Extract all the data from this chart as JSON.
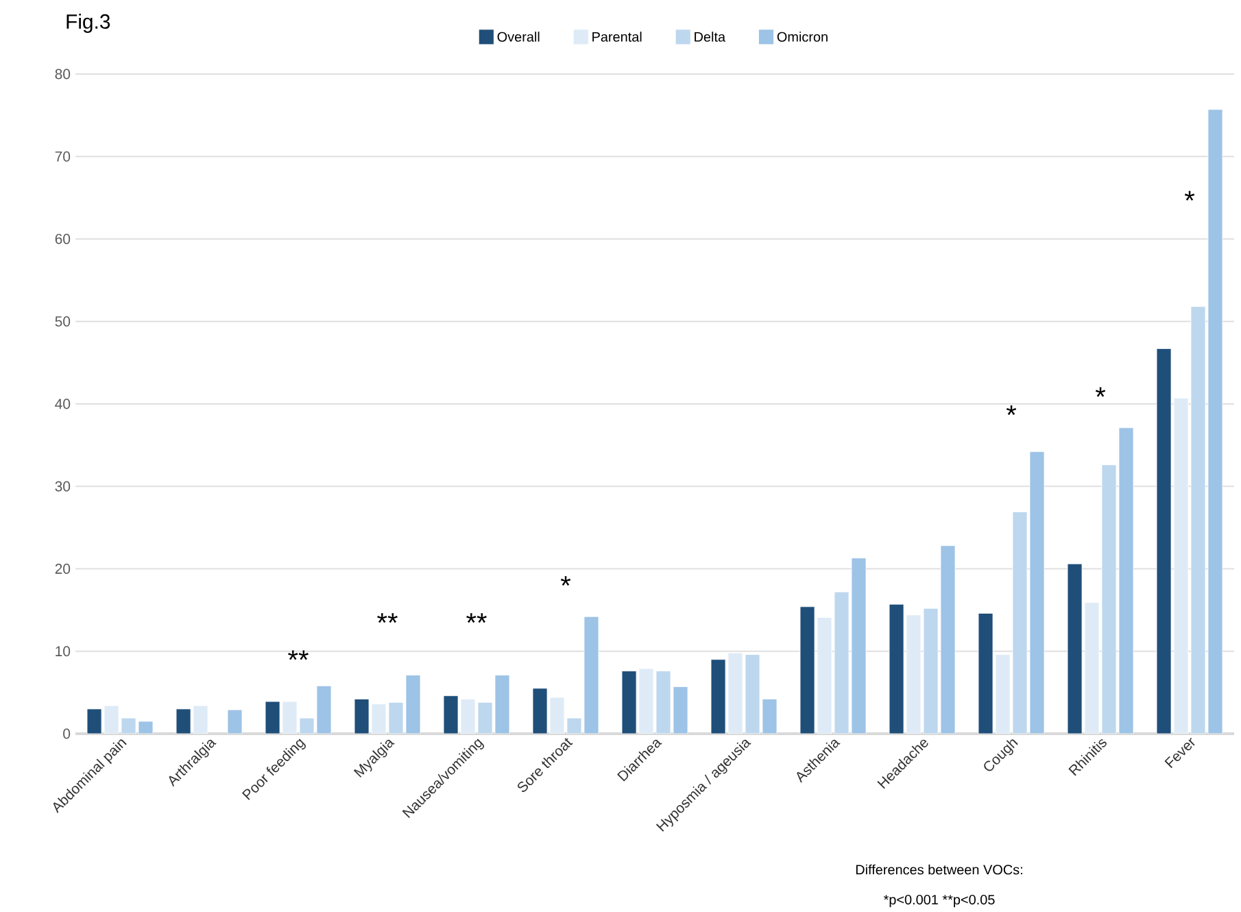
{
  "chart_data": {
    "type": "bar",
    "title": "Fig.3",
    "categories": [
      "Abdominal pain",
      "Arthralgia",
      "Poor feeding",
      "Myalgia",
      "Nausea/vomiting",
      "Sore throat",
      "Diarrhea",
      "Hyposmia / ageusia",
      "Asthenia",
      "Headache",
      "Cough",
      "Rhinitis",
      "Fever"
    ],
    "series": [
      {
        "name": "Overall",
        "color": "#1f4e79",
        "values": [
          3.0,
          3.0,
          3.9,
          4.2,
          4.6,
          5.5,
          7.6,
          9.0,
          15.4,
          15.7,
          14.6,
          20.6,
          46.7
        ]
      },
      {
        "name": "Parental",
        "color": "#deebf7",
        "values": [
          3.4,
          3.4,
          3.9,
          3.6,
          4.2,
          4.4,
          7.9,
          9.8,
          14.1,
          14.4,
          9.6,
          15.9,
          40.7
        ]
      },
      {
        "name": "Delta",
        "color": "#bdd7ee",
        "values": [
          1.9,
          null,
          1.9,
          3.8,
          3.8,
          1.9,
          7.6,
          9.6,
          17.2,
          15.2,
          26.9,
          32.6,
          51.8
        ]
      },
      {
        "name": "Omicron",
        "color": "#9dc3e6",
        "values": [
          1.5,
          2.9,
          5.8,
          7.1,
          7.1,
          14.2,
          5.7,
          4.2,
          21.3,
          22.8,
          34.2,
          37.1,
          75.7
        ]
      }
    ],
    "ylim": [
      0,
      80
    ],
    "yticks": [
      0,
      10,
      20,
      30,
      40,
      50,
      60,
      70,
      80
    ],
    "grid": "y",
    "legend": "top",
    "annotations": [
      "**",
      "**",
      "**",
      "*",
      "*",
      "*",
      "*",
      "Differences between VOCs:",
      "*p<0.001   **p<0.05"
    ]
  }
}
